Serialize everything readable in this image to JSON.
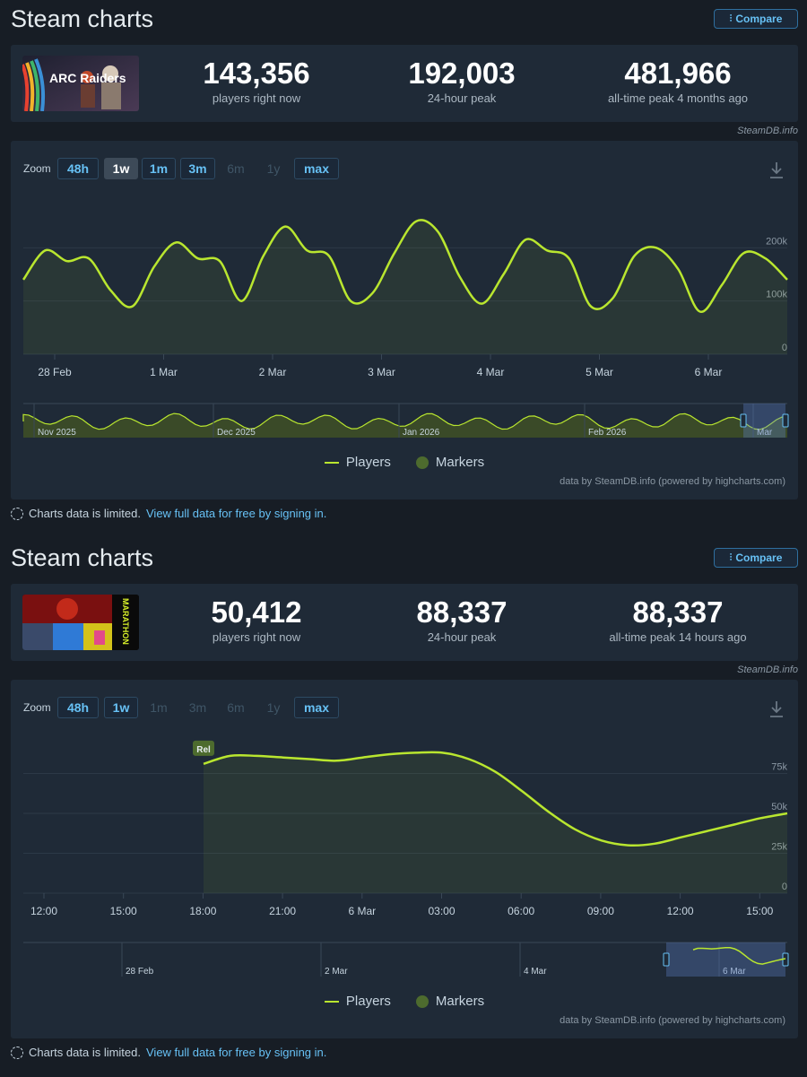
{
  "sections": [
    {
      "title": "Steam charts",
      "compare_label": "Compare",
      "thumbnail_text": "ARC Raiders",
      "stats": [
        {
          "value": "143,356",
          "label": "players right now"
        },
        {
          "value": "192,003",
          "label": "24-hour peak"
        },
        {
          "value": "481,966",
          "label": "all-time peak 4 months ago"
        }
      ],
      "credit_top": "SteamDB.info",
      "zoom": {
        "label": "Zoom",
        "buttons": [
          "48h",
          "1w",
          "1m",
          "3m",
          "6m",
          "1y",
          "max"
        ],
        "selected": "1w",
        "disabled": [
          "6m",
          "1y"
        ]
      },
      "legend": {
        "players": "Players",
        "markers": "Markers"
      },
      "credit_bottom": "data by SteamDB.info (powered by highcharts.com)",
      "limited_text": "Charts data is limited.",
      "limited_link": "View full data for free by signing in."
    },
    {
      "title": "Steam charts",
      "compare_label": "Compare",
      "thumbnail_text": "MARATHON",
      "stats": [
        {
          "value": "50,412",
          "label": "players right now"
        },
        {
          "value": "88,337",
          "label": "24-hour peak"
        },
        {
          "value": "88,337",
          "label": "all-time peak 14 hours ago"
        }
      ],
      "credit_top": "SteamDB.info",
      "zoom": {
        "label": "Zoom",
        "buttons": [
          "48h",
          "1w",
          "1m",
          "3m",
          "6m",
          "1y",
          "max"
        ],
        "selected": "48h",
        "disabled": [
          "1m",
          "3m",
          "6m",
          "1y"
        ]
      },
      "legend": {
        "players": "Players",
        "markers": "Markers"
      },
      "credit_bottom": "data by SteamDB.info (powered by highcharts.com)",
      "limited_text": "Charts data is limited.",
      "limited_link": "View full data for free by signing in."
    }
  ],
  "colors": {
    "line": "#b9e62f",
    "accent": "#67c1f5",
    "panel": "#1f2a37",
    "background": "#171d25"
  },
  "chart_data": [
    {
      "type": "line",
      "series": [
        {
          "name": "Players",
          "x": [
            "27 Feb 18:00",
            "28 Feb 00:00",
            "28 Feb 04:00",
            "28 Feb 08:00",
            "28 Feb 12:00",
            "28 Feb 18:00",
            "1 Mar 00:00",
            "1 Mar 04:00",
            "1 Mar 08:00",
            "1 Mar 12:00",
            "1 Mar 18:00",
            "2 Mar 00:00",
            "2 Mar 04:00",
            "2 Mar 08:00",
            "2 Mar 12:00",
            "2 Mar 18:00",
            "3 Mar 00:00",
            "3 Mar 04:00",
            "3 Mar 08:00",
            "3 Mar 12:00",
            "3 Mar 18:00",
            "4 Mar 00:00",
            "4 Mar 04:00",
            "4 Mar 08:00",
            "4 Mar 12:00",
            "4 Mar 18:00",
            "5 Mar 00:00",
            "5 Mar 04:00",
            "5 Mar 08:00",
            "5 Mar 12:00",
            "5 Mar 18:00",
            "6 Mar 00:00",
            "6 Mar 04:00",
            "6 Mar 08:00",
            "6 Mar 12:00",
            "6 Mar 16:00"
          ],
          "y": [
            140000,
            195000,
            175000,
            180000,
            120000,
            90000,
            165000,
            210000,
            180000,
            175000,
            100000,
            185000,
            240000,
            195000,
            185000,
            100000,
            115000,
            190000,
            250000,
            230000,
            145000,
            95000,
            150000,
            215000,
            195000,
            180000,
            90000,
            105000,
            185000,
            200000,
            160000,
            80000,
            130000,
            190000,
            180000,
            140000
          ]
        }
      ],
      "x_ticks": [
        "28 Feb",
        "1 Mar",
        "2 Mar",
        "3 Mar",
        "4 Mar",
        "5 Mar",
        "6 Mar"
      ],
      "y_ticks": [
        "0",
        "100k",
        "200k"
      ],
      "ylim": [
        0,
        300000
      ],
      "navigator_labels": [
        "Nov 2025",
        "Dec 2025",
        "Jan 2026",
        "Feb 2026",
        "Mar"
      ]
    },
    {
      "type": "line",
      "series": [
        {
          "name": "Players",
          "x": [
            "18:00",
            "19:00",
            "20:00",
            "21:00",
            "22:00",
            "23:00",
            "6 Mar 00:00",
            "01:00",
            "02:00",
            "03:00",
            "04:00",
            "05:00",
            "06:00",
            "07:00",
            "08:00",
            "09:00",
            "10:00",
            "11:00",
            "12:00",
            "13:00",
            "14:00",
            "15:00",
            "16:00"
          ],
          "y": [
            81000,
            86000,
            86000,
            85000,
            84000,
            83000,
            85000,
            87000,
            88000,
            88000,
            84000,
            76000,
            64000,
            51000,
            40000,
            33000,
            30000,
            31000,
            35000,
            39000,
            43000,
            47000,
            50000
          ]
        }
      ],
      "annotation": "Rel",
      "x_ticks": [
        "12:00",
        "15:00",
        "18:00",
        "21:00",
        "6 Mar",
        "03:00",
        "06:00",
        "09:00",
        "12:00",
        "15:00"
      ],
      "y_ticks": [
        "0",
        "25k",
        "50k",
        "75k"
      ],
      "ylim": [
        0,
        100000
      ],
      "navigator_labels": [
        "28 Feb",
        "2 Mar",
        "4 Mar",
        "6 Mar"
      ]
    }
  ]
}
